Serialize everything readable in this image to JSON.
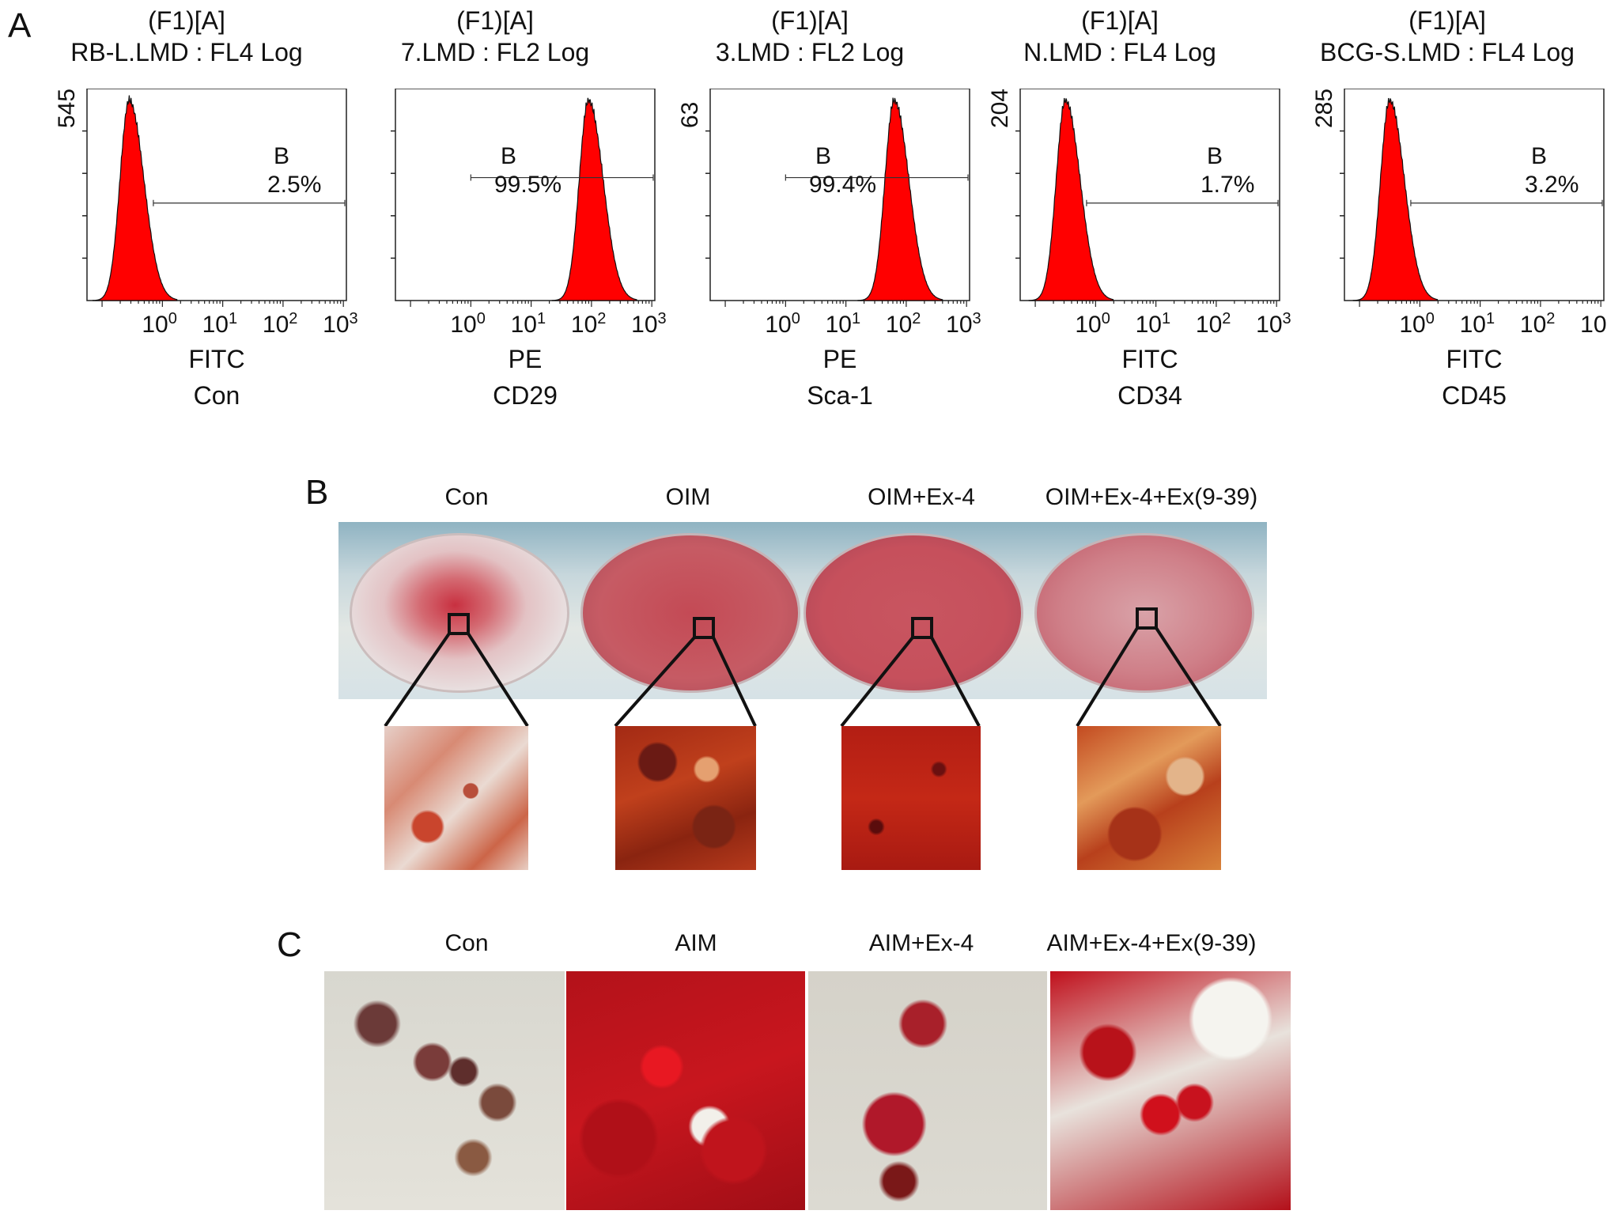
{
  "panels": {
    "a": "A",
    "b": "B",
    "c": "C"
  },
  "histograms": [
    {
      "title1": "(F1)[A]",
      "title2": "RB-L.LMD : FL4 Log",
      "ymax": "545",
      "gate_name": "B",
      "gate_pct": "2.5%",
      "xlabel": "FITC",
      "sample": "Con",
      "peak_decade": -0.55
    },
    {
      "title1": "(F1)[A]",
      "title2": "7.LMD : FL2 Log",
      "ymax": "",
      "gate_name": "B",
      "gate_pct": "99.5%",
      "xlabel": "PE",
      "sample": "CD29",
      "peak_decade": 1.95
    },
    {
      "title1": "(F1)[A]",
      "title2": "3.LMD : FL2 Log",
      "ymax": "63",
      "gate_name": "B",
      "gate_pct": "99.4%",
      "xlabel": "PE",
      "sample": "Sca-1",
      "peak_decade": 1.8
    },
    {
      "title1": "(F1)[A]",
      "title2": "N.LMD : FL4 Log",
      "ymax": "204",
      "gate_name": "B",
      "gate_pct": "1.7%",
      "xlabel": "FITC",
      "sample": "CD34",
      "peak_decade": -0.5
    },
    {
      "title1": "(F1)[A]",
      "title2": "BCG-S.LMD : FL4 Log",
      "ymax": "285",
      "gate_name": "B",
      "gate_pct": "3.2%",
      "xlabel": "FITC",
      "sample": "CD45",
      "peak_decade": -0.5
    }
  ],
  "x_ticks": [
    {
      "base": "10",
      "exp": "0"
    },
    {
      "base": "10",
      "exp": "1"
    },
    {
      "base": "10",
      "exp": "2"
    },
    {
      "base": "10",
      "exp": "3"
    }
  ],
  "osteo": {
    "labels": [
      "Con",
      "OIM",
      "OIM+Ex-4",
      "OIM+Ex-4+Ex(9-39)"
    ]
  },
  "adipo": {
    "labels": [
      "Con",
      "AIM",
      "AIM+Ex-4",
      "AIM+Ex-4+Ex(9-39)"
    ]
  },
  "colors": {
    "histogram_fill": "#ff0000",
    "alizarin": "#b8202c",
    "oil_red": "#d4101e"
  }
}
